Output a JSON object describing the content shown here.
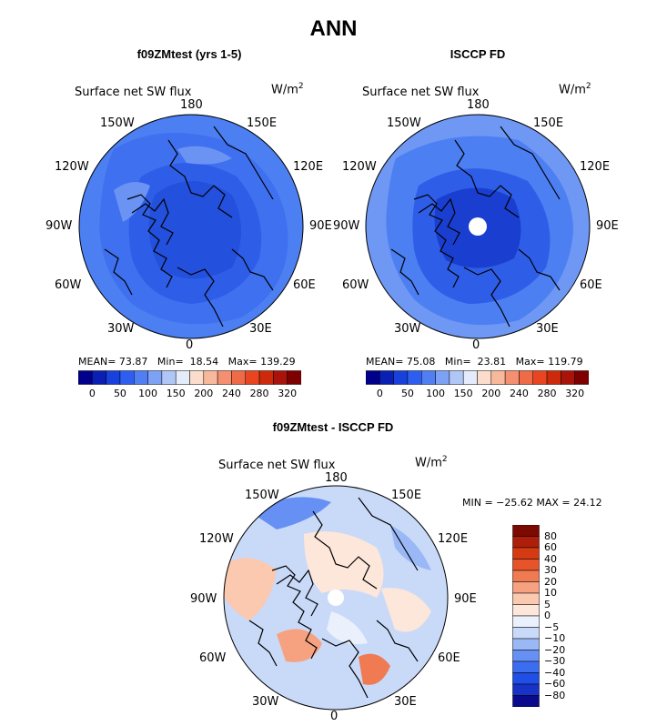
{
  "title": "ANN",
  "colors": {
    "full": [
      "#00008b",
      "#0a1fb4",
      "#1740dc",
      "#2e5ef0",
      "#4f7ff2",
      "#7da2f5",
      "#b0c6f7",
      "#e4ecfb",
      "#fcdccb",
      "#f8b89c",
      "#f49070",
      "#ef6a47",
      "#e84520",
      "#cc2a0b",
      "#a8140a",
      "#7f0000"
    ],
    "diff": [
      "#0a0a8c",
      "#1732c4",
      "#1f4fe6",
      "#3a6df0",
      "#6690f3",
      "#9bb8f6",
      "#c9daf9",
      "#eaf0fc",
      "#fde6da",
      "#fbc8b0",
      "#f6a280",
      "#f07a52",
      "#e8542a",
      "#d63a13",
      "#ad1f0a",
      "#7c0a03"
    ]
  },
  "panels": [
    {
      "id": "model",
      "title": "f09ZMtest (yrs 1-5)",
      "variable": "Surface net SW flux",
      "units_base": "W/m",
      "units_exp": "2",
      "stats": {
        "mean_label": "MEAN=",
        "mean": "73.87",
        "min_label": "Min=",
        "min": "18.54",
        "max_label": "Max=",
        "max": "139.29"
      },
      "colorbar_labels": [
        "0",
        "50",
        "100",
        "150",
        "200",
        "240",
        "280",
        "320"
      ]
    },
    {
      "id": "obs",
      "title": "ISCCP FD",
      "variable": "Surface net SW flux",
      "units_base": "W/m",
      "units_exp": "2",
      "stats": {
        "mean_label": "MEAN=",
        "mean": "75.08",
        "min_label": "Min=",
        "min": "23.81",
        "max_label": "Max=",
        "max": "119.79"
      },
      "colorbar_labels": [
        "0",
        "50",
        "100",
        "150",
        "200",
        "240",
        "280",
        "320"
      ]
    }
  ],
  "diff_panel": {
    "title": "f09ZMtest - ISCCP FD",
    "variable": "Surface net SW flux",
    "units_base": "W/m",
    "units_exp": "2",
    "minmax": "MIN = −25.62 MAX =  24.12",
    "colorbar_labels": [
      "80",
      "60",
      "40",
      "30",
      "20",
      "10",
      "5",
      "0",
      "−5",
      "−10",
      "−20",
      "−30",
      "−40",
      "−60",
      "−80"
    ]
  },
  "longitude_labels": {
    "top": "180",
    "bottom": "0",
    "upper_left": "150W",
    "upper_right": "150E",
    "left_upper": "120W",
    "right_upper": "120E",
    "left": "90W",
    "right": "90E",
    "left_lower": "60W",
    "right_lower": "60E",
    "lower_left": "30W",
    "lower_right": "30E"
  }
}
